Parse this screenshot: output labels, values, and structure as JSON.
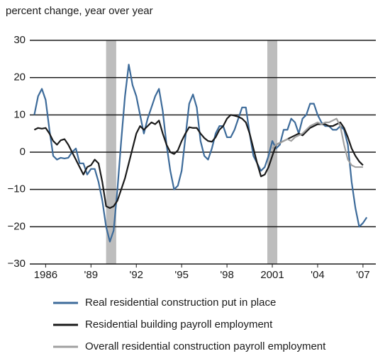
{
  "chart_data": {
    "type": "line",
    "title": "percent change, year over year",
    "x": [
      1985.75,
      1986,
      1986.25,
      1986.5,
      1986.75,
      1987,
      1987.25,
      1987.5,
      1987.75,
      1988,
      1988.25,
      1988.5,
      1988.75,
      1989,
      1989.25,
      1989.5,
      1989.75,
      1990,
      1990.25,
      1990.5,
      1990.75,
      1991,
      1991.25,
      1991.5,
      1991.75,
      1992,
      1992.25,
      1992.5,
      1992.75,
      1993,
      1993.25,
      1993.5,
      1993.75,
      1994,
      1994.25,
      1994.5,
      1994.75,
      1995,
      1995.25,
      1995.5,
      1995.75,
      1996,
      1996.25,
      1996.5,
      1996.75,
      1997,
      1997.25,
      1997.5,
      1997.75,
      1998,
      1998.25,
      1998.5,
      1998.75,
      1999,
      1999.25,
      1999.5,
      1999.75,
      2000,
      2000.25,
      2000.5,
      2000.75,
      2001,
      2001.25,
      2001.5,
      2001.75,
      2002,
      2002.25,
      2002.5,
      2002.75,
      2003,
      2003.25,
      2003.5,
      2003.75,
      2004,
      2004.25,
      2004.5,
      2004.75,
      2005,
      2005.25,
      2005.5,
      2005.75,
      2006,
      2006.25,
      2006.5,
      2006.75,
      2007,
      2007.25,
      2007.5,
      2007.75
    ],
    "series": [
      {
        "name": "Real residential construction put in place",
        "color": "#3d6b9a",
        "values": [
          10,
          15,
          17,
          14,
          6,
          -1,
          -2,
          -1.5,
          -1.7,
          -1.5,
          0,
          1,
          -3,
          -3,
          -6,
          -4.5,
          -4.5,
          -8,
          -13,
          -20,
          -24,
          -21,
          -10,
          3,
          15,
          23.5,
          18,
          15,
          10,
          5,
          9,
          12,
          15,
          17,
          11,
          2,
          -5,
          -10,
          -9,
          -5,
          4,
          13,
          15.5,
          12,
          3,
          -1,
          -2,
          1,
          5,
          7,
          7,
          4,
          4,
          6,
          9,
          12,
          12,
          5,
          -1,
          -3,
          -5,
          -4,
          -1,
          3,
          1,
          2,
          6,
          6,
          9,
          8,
          5,
          9,
          10,
          13,
          13,
          10,
          8,
          7,
          7,
          6,
          6,
          7,
          6,
          2,
          -8,
          -15,
          -20,
          -19,
          -17.5
        ]
      },
      {
        "name": "Residential building payroll employment",
        "color": "#1a1a1a",
        "values": [
          6,
          6.5,
          6.3,
          6.5,
          5,
          3,
          2,
          3.2,
          3.5,
          2,
          0,
          -2,
          -4,
          -6,
          -4,
          -3.5,
          -2,
          -3,
          -8,
          -14.5,
          -15,
          -14.5,
          -13,
          -10,
          -7,
          -3,
          1,
          5,
          7,
          6,
          7,
          8,
          7.5,
          8.5,
          5,
          2,
          0,
          -0.5,
          0.5,
          3,
          5,
          6.7,
          6.5,
          6.5,
          5,
          3.8,
          3,
          2.8,
          4,
          6,
          7,
          9,
          10,
          9.8,
          9.5,
          9,
          8,
          5,
          1,
          -3,
          -6.5,
          -6,
          -4,
          -1,
          2,
          2.5,
          3,
          3.5,
          4,
          4.5,
          5,
          4.5,
          5.5,
          6.5,
          7,
          7.5,
          7.5,
          7.5,
          7,
          7,
          7.5,
          8,
          6.5,
          4,
          1,
          -1,
          -2.5,
          -3.5,
          null
        ]
      },
      {
        "name": "Overall residential construction payroll employment",
        "color": "#a0a0a0",
        "values": [
          null,
          null,
          null,
          null,
          null,
          null,
          null,
          null,
          null,
          null,
          null,
          null,
          null,
          null,
          null,
          null,
          null,
          null,
          null,
          null,
          null,
          null,
          null,
          null,
          null,
          null,
          null,
          null,
          null,
          null,
          null,
          null,
          null,
          null,
          null,
          null,
          null,
          null,
          null,
          null,
          null,
          null,
          null,
          null,
          null,
          null,
          null,
          null,
          null,
          null,
          null,
          null,
          null,
          null,
          null,
          null,
          null,
          null,
          null,
          null,
          null,
          null,
          null,
          1,
          2,
          2.5,
          3,
          3.5,
          3,
          4,
          4.5,
          5,
          6,
          7,
          7.5,
          8,
          7.5,
          8,
          8,
          8.5,
          9,
          7,
          2,
          -2,
          -3.5,
          -4,
          -4,
          -4,
          null
        ]
      }
    ],
    "recessions": [
      [
        1990.5,
        1991.17
      ],
      [
        2001.17,
        2001.83
      ]
    ],
    "xlim": [
      1985.45,
      2008.35
    ],
    "xticks": [
      {
        "value": 1986.5,
        "label": "1986"
      },
      {
        "value": 1989.5,
        "label": "'89"
      },
      {
        "value": 1992.5,
        "label": "'92"
      },
      {
        "value": 1995.5,
        "label": "'95"
      },
      {
        "value": 1998.5,
        "label": "'98"
      },
      {
        "value": 2001.5,
        "label": "2001"
      },
      {
        "value": 2004.5,
        "label": "'04"
      },
      {
        "value": 2007.5,
        "label": "'07"
      }
    ],
    "ylim": [
      -30,
      30
    ],
    "yticks": [
      {
        "value": -30,
        "label": "−30"
      },
      {
        "value": -20,
        "label": "−20"
      },
      {
        "value": -10,
        "label": "−10"
      },
      0,
      10,
      20,
      30
    ],
    "grid": true,
    "recession_color": "#bdbdbd"
  }
}
